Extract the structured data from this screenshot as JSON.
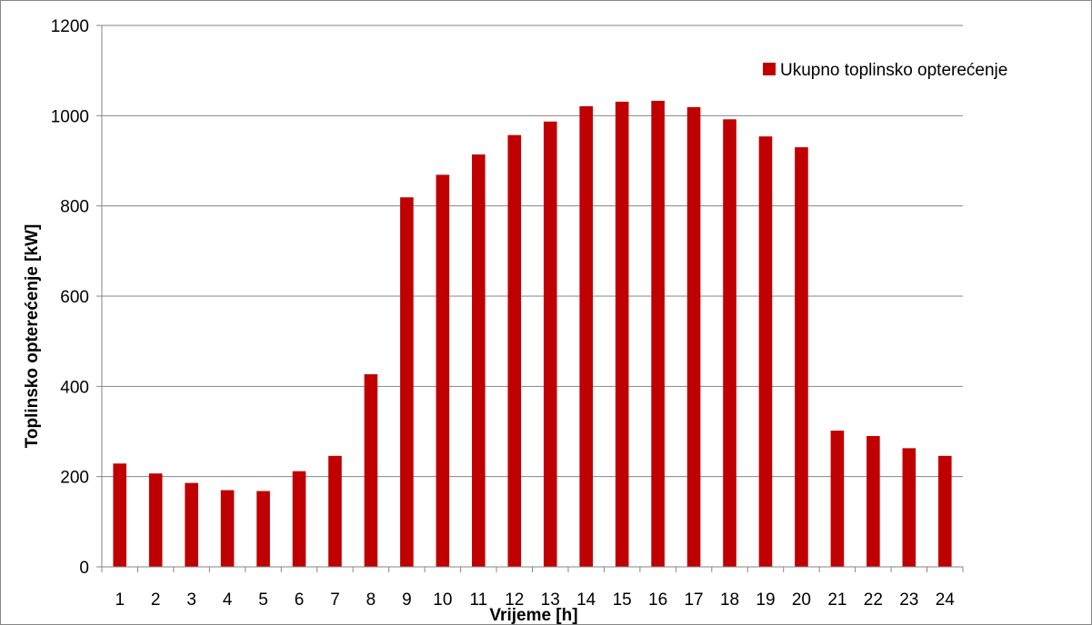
{
  "chart_data": {
    "type": "bar",
    "categories": [
      "1",
      "2",
      "3",
      "4",
      "5",
      "6",
      "7",
      "8",
      "9",
      "10",
      "11",
      "12",
      "13",
      "14",
      "15",
      "16",
      "17",
      "18",
      "19",
      "20",
      "21",
      "22",
      "23",
      "24"
    ],
    "series": [
      {
        "name": "Ukupno toplinsko opterećenje",
        "values": [
          229,
          207,
          186,
          170,
          168,
          212,
          246,
          427,
          819,
          869,
          914,
          957,
          987,
          1021,
          1031,
          1033,
          1019,
          992,
          954,
          930,
          302,
          290,
          263,
          246
        ],
        "color": "#C00000"
      }
    ],
    "xlabel": "Vrijeme [h]",
    "ylabel": "Toplinsko opterećenje [kW]",
    "ylim": [
      0,
      1200
    ],
    "yticks": [
      0,
      200,
      400,
      600,
      800,
      1000,
      1200
    ],
    "grid": true,
    "legend_position": "top-right"
  }
}
